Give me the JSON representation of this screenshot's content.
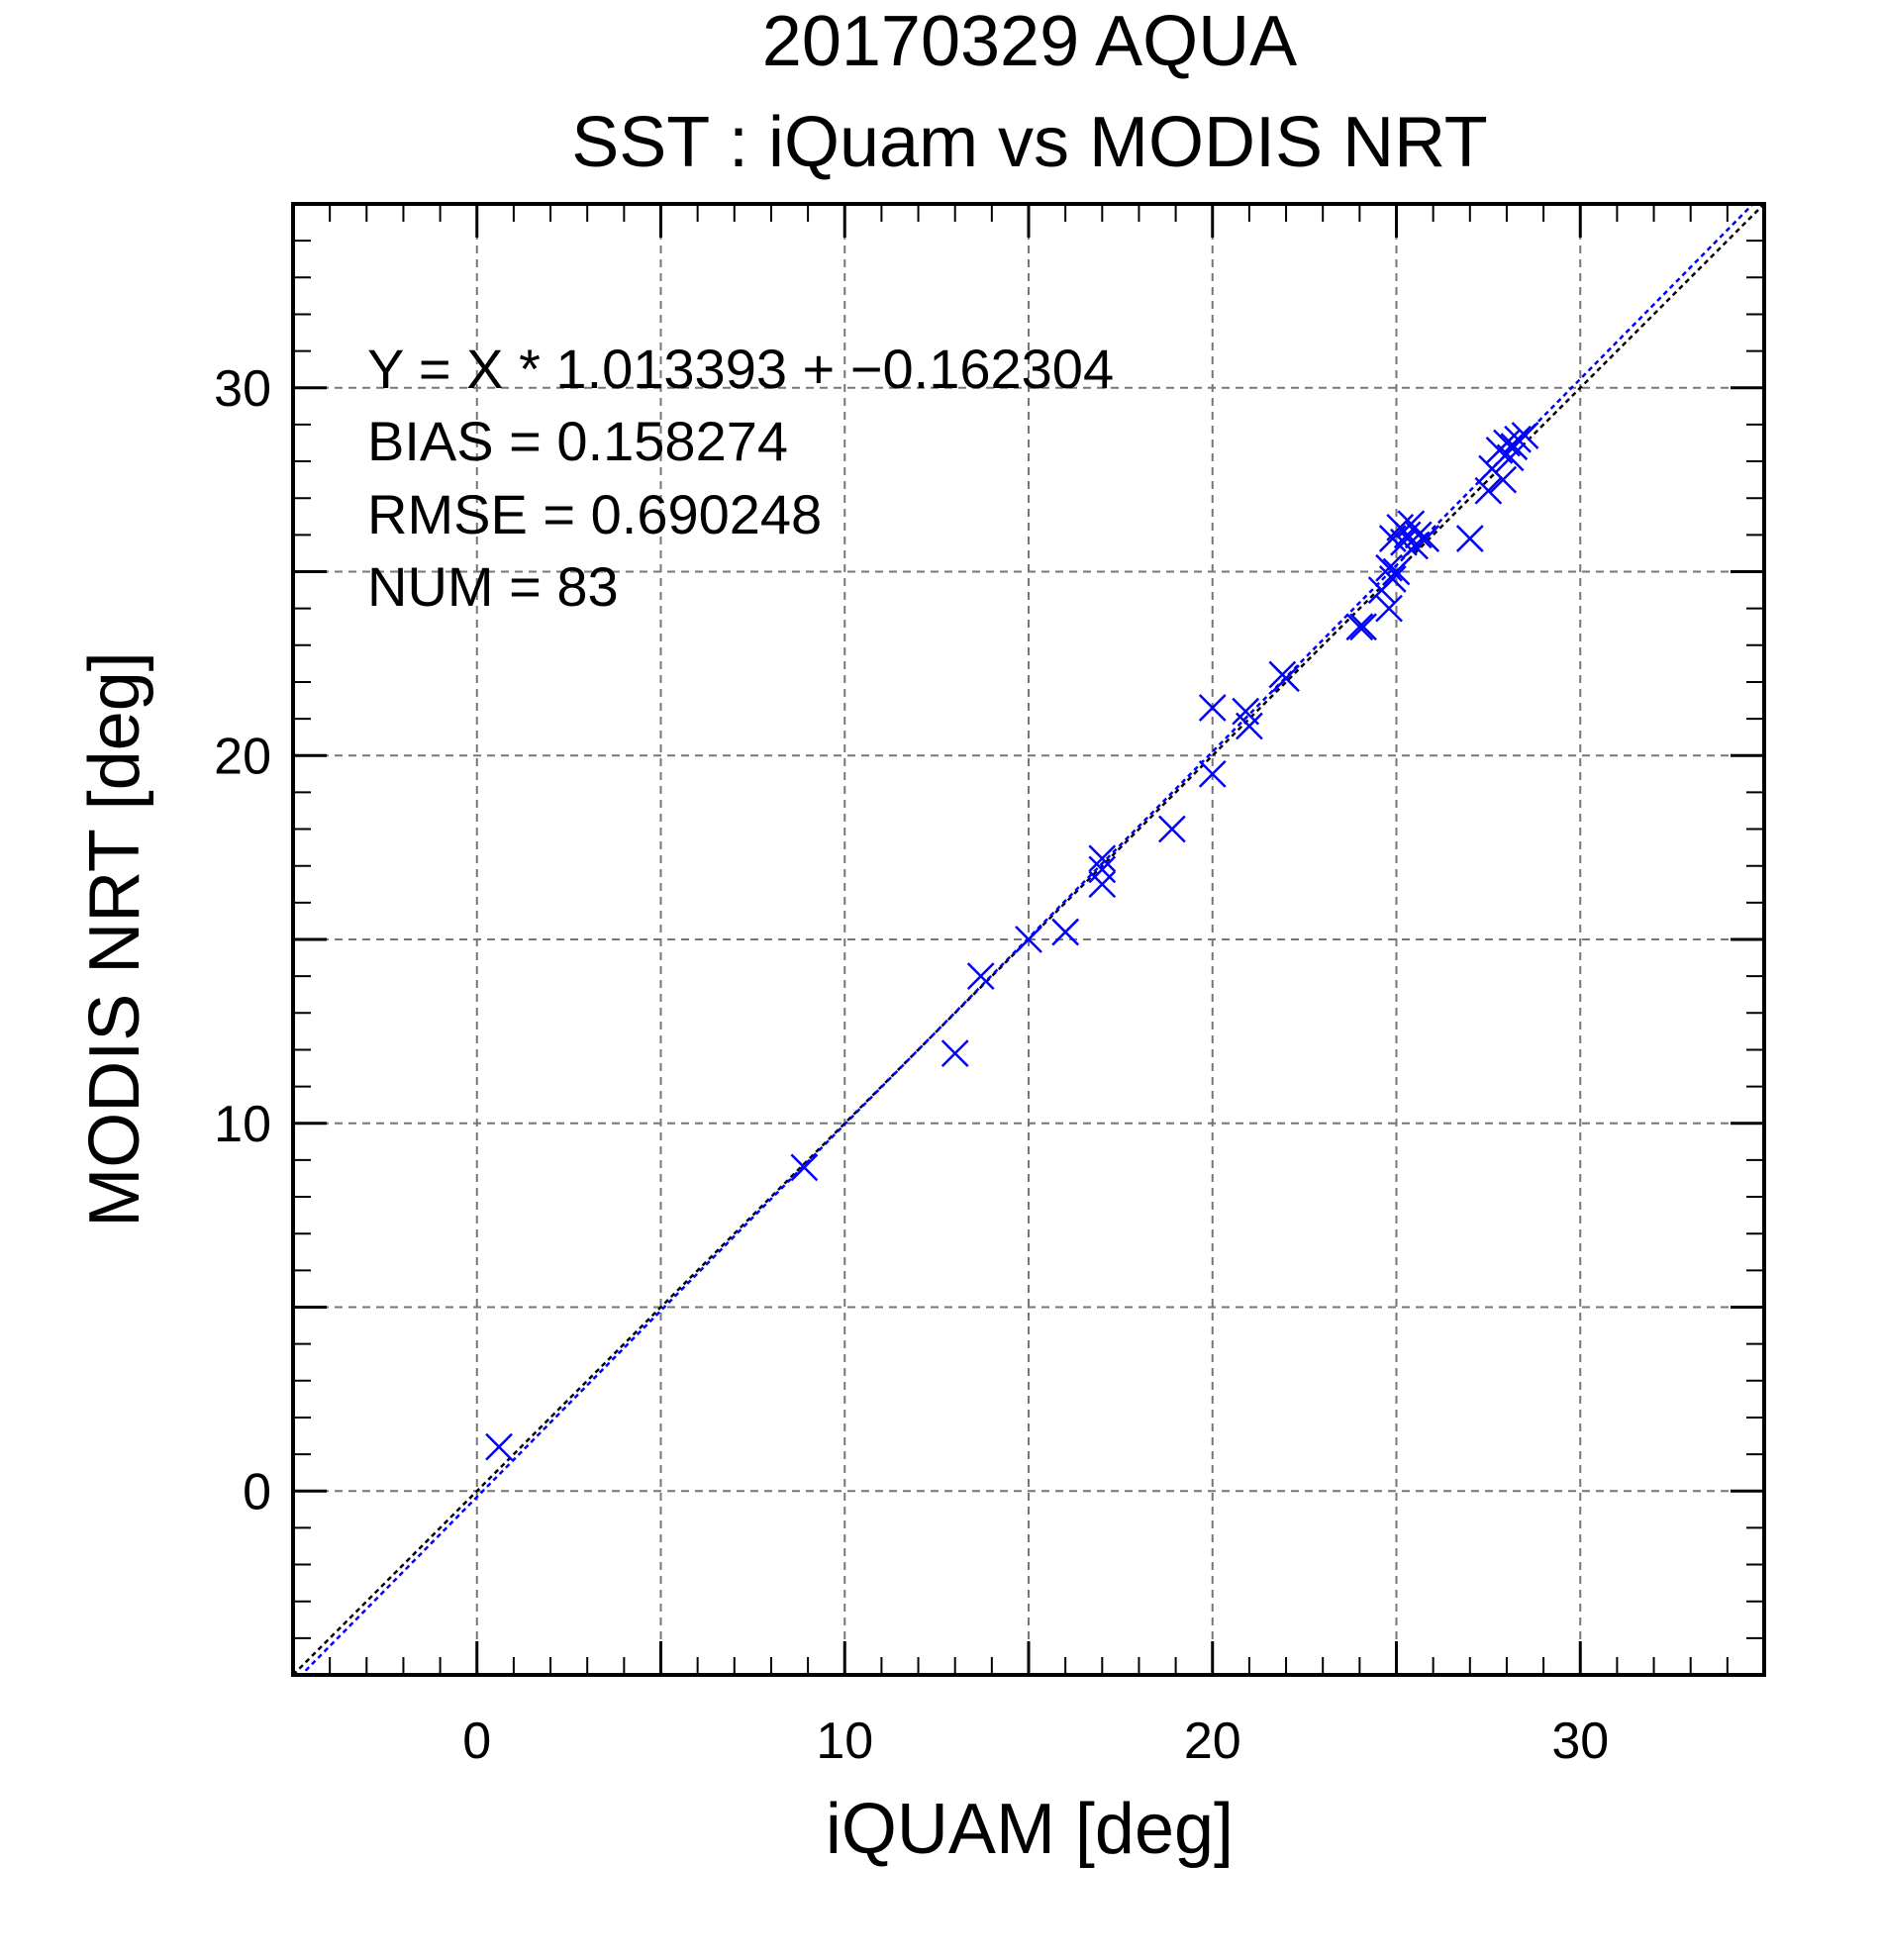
{
  "chart_data": {
    "type": "scatter",
    "title": "20170329 AQUA",
    "subtitle": "SST : iQuam vs MODIS NRT",
    "xlabel": "iQUAM [deg]",
    "ylabel": "MODIS NRT [deg]",
    "xlim": [
      -5,
      35
    ],
    "ylim": [
      -5,
      35
    ],
    "x_major_ticks": [
      0,
      10,
      20,
      30
    ],
    "y_major_ticks": [
      0,
      10,
      20,
      30
    ],
    "x_tick_labels": [
      "0",
      "10",
      "20",
      "30"
    ],
    "y_tick_labels": [
      "0",
      "10",
      "20",
      "30"
    ],
    "grid": true,
    "annotations": [
      "Y = X * 1.013393 + −0.162304",
      "BIAS = 0.158274",
      "RMSE = 0.690248",
      "NUM = 83"
    ],
    "fit": {
      "slope": 1.013393,
      "intercept": -0.162304,
      "color": "#0000ff"
    },
    "identity_line": {
      "slope": 1,
      "intercept": 0,
      "color": "#000000"
    },
    "marker_color": "#0000ff",
    "points": [
      [
        0.6,
        1.2
      ],
      [
        8.9,
        8.8
      ],
      [
        13.0,
        11.9
      ],
      [
        13.7,
        14.0
      ],
      [
        15.0,
        15.0
      ],
      [
        16.0,
        15.2
      ],
      [
        17.0,
        17.2
      ],
      [
        17.0,
        16.9
      ],
      [
        17.0,
        16.5
      ],
      [
        18.9,
        18.0
      ],
      [
        20.0,
        21.3
      ],
      [
        20.0,
        19.5
      ],
      [
        20.9,
        21.2
      ],
      [
        21.0,
        20.8
      ],
      [
        21.9,
        22.2
      ],
      [
        22.0,
        22.1
      ],
      [
        24.0,
        23.5
      ],
      [
        24.1,
        23.5
      ],
      [
        24.6,
        24.5
      ],
      [
        24.8,
        24.0
      ],
      [
        24.8,
        25.1
      ],
      [
        24.9,
        24.8
      ],
      [
        24.9,
        25.9
      ],
      [
        25.0,
        25.0
      ],
      [
        25.1,
        26.2
      ],
      [
        25.2,
        25.8
      ],
      [
        25.3,
        26.0
      ],
      [
        25.4,
        26.3
      ],
      [
        25.5,
        25.7
      ],
      [
        25.6,
        26.0
      ],
      [
        25.8,
        25.9
      ],
      [
        27.0,
        25.9
      ],
      [
        27.5,
        27.2
      ],
      [
        27.6,
        27.8
      ],
      [
        27.8,
        28.3
      ],
      [
        27.9,
        27.5
      ],
      [
        28.0,
        28.5
      ],
      [
        28.1,
        28.1
      ],
      [
        28.2,
        28.4
      ],
      [
        28.3,
        28.6
      ],
      [
        28.5,
        28.7
      ]
    ]
  }
}
